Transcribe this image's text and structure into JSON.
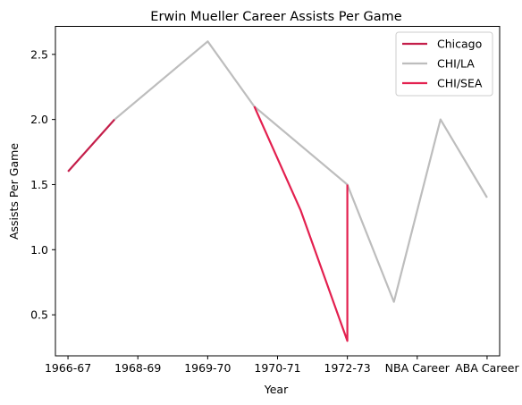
{
  "chart_data": {
    "type": "line",
    "title": "Erwin Mueller Career Assists Per Game",
    "xlabel": "Year",
    "ylabel": "Assists Per Game",
    "x_ticks": [
      "1966-67",
      "1968-69",
      "1969-70",
      "1970-71",
      "1972-73",
      "NBA Career",
      "ABA Career"
    ],
    "y_ticks": [
      0.5,
      1.0,
      1.5,
      2.0,
      2.5
    ],
    "y_tick_labels": [
      "0.5",
      "1.0",
      "1.5",
      "2.0",
      "2.5"
    ],
    "xlim": [
      -0.27,
      9.27
    ],
    "ylim": [
      0.185,
      2.715
    ],
    "grid": false,
    "legend_position": "top-right",
    "series": [
      {
        "name": "Chicago",
        "color": "#c41e4a",
        "x": [
          0,
          1
        ],
        "y": [
          1.6,
          2.0
        ]
      },
      {
        "name": "CHI/LA",
        "color": "#bdbdbd",
        "x": [
          1,
          3,
          4,
          6,
          7,
          8,
          9
        ],
        "y": [
          2.0,
          2.6,
          2.1,
          1.5,
          0.6,
          2.0,
          1.4
        ]
      },
      {
        "name": "CHI/SEA",
        "color": "#e3204f",
        "x": [
          4,
          5,
          6,
          6
        ],
        "y": [
          2.1,
          1.3,
          0.3,
          1.5
        ]
      }
    ]
  }
}
